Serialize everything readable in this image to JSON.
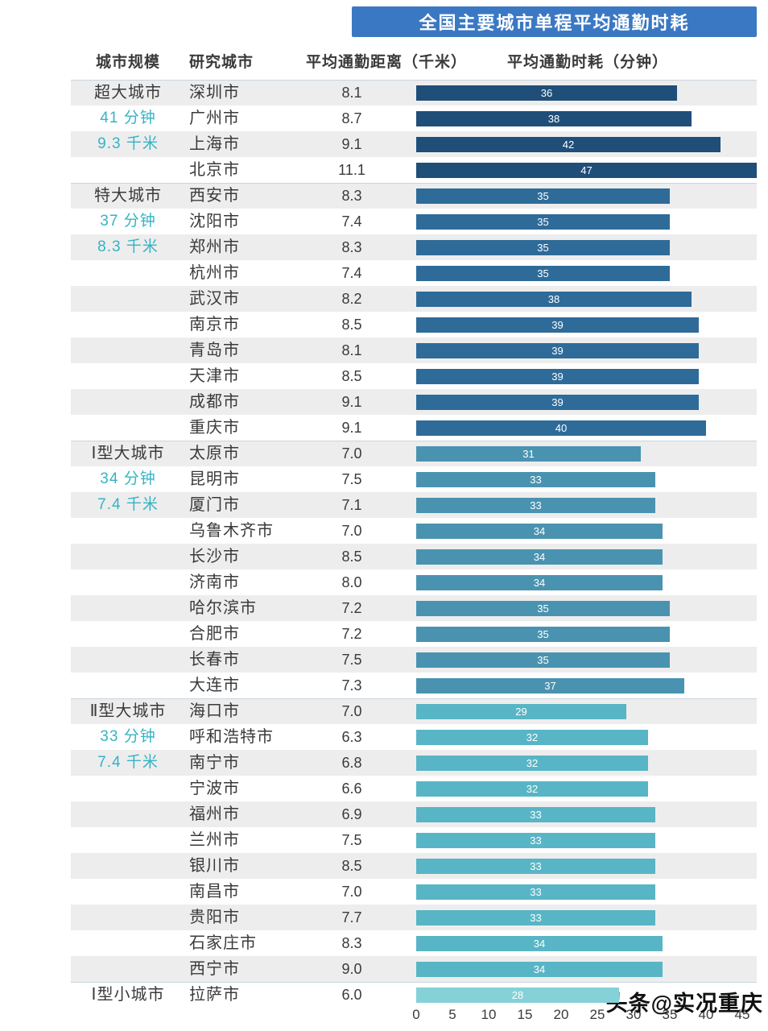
{
  "title": "全国主要城市单程平均通勤时耗",
  "watermark": "头条@实况重庆",
  "columns": {
    "scale": "城市规模",
    "city": "研究城市",
    "distance": "平均通勤距离（千米）",
    "time": "平均通勤时耗（分钟）"
  },
  "colors": {
    "title_bg": "#3b78c3",
    "accent_teal": "#35b3c4",
    "stripe": "#ededed",
    "separator": "#c9d5dd",
    "bar_label": "#ffffff"
  },
  "chart_data": {
    "type": "bar",
    "orientation": "horizontal",
    "title": "全国主要城市单程平均通勤时耗",
    "value_label": "平均通勤时耗（分钟）",
    "distance_label": "平均通勤距离（千米）",
    "xlim": [
      0,
      45
    ],
    "x_ticks": [
      0,
      5,
      10,
      15,
      20,
      25,
      30,
      35,
      40,
      45
    ],
    "grid": false,
    "groups": [
      {
        "name": "超大城市",
        "avg_time": "41 分钟",
        "avg_distance": "9.3 千米",
        "bar_color": "#1f4e79",
        "cities": [
          {
            "city": "深圳市",
            "distance": "8.1",
            "time": 36
          },
          {
            "city": "广州市",
            "distance": "8.7",
            "time": 38
          },
          {
            "city": "上海市",
            "distance": "9.1",
            "time": 42
          },
          {
            "city": "北京市",
            "distance": "11.1",
            "time": 47
          }
        ]
      },
      {
        "name": "特大城市",
        "avg_time": "37 分钟",
        "avg_distance": "8.3 千米",
        "bar_color": "#2e6b99",
        "cities": [
          {
            "city": "西安市",
            "distance": "8.3",
            "time": 35
          },
          {
            "city": "沈阳市",
            "distance": "7.4",
            "time": 35
          },
          {
            "city": "郑州市",
            "distance": "8.3",
            "time": 35
          },
          {
            "city": "杭州市",
            "distance": "7.4",
            "time": 35
          },
          {
            "city": "武汉市",
            "distance": "8.2",
            "time": 38
          },
          {
            "city": "南京市",
            "distance": "8.5",
            "time": 39
          },
          {
            "city": "青岛市",
            "distance": "8.1",
            "time": 39
          },
          {
            "city": "天津市",
            "distance": "8.5",
            "time": 39
          },
          {
            "city": "成都市",
            "distance": "9.1",
            "time": 39
          },
          {
            "city": "重庆市",
            "distance": "9.1",
            "time": 40
          }
        ]
      },
      {
        "name": "Ⅰ型大城市",
        "avg_time": "34 分钟",
        "avg_distance": "7.4 千米",
        "bar_color": "#4a93b0",
        "cities": [
          {
            "city": "太原市",
            "distance": "7.0",
            "time": 31
          },
          {
            "city": "昆明市",
            "distance": "7.5",
            "time": 33
          },
          {
            "city": "厦门市",
            "distance": "7.1",
            "time": 33
          },
          {
            "city": "乌鲁木齐市",
            "distance": "7.0",
            "time": 34
          },
          {
            "city": "长沙市",
            "distance": "8.5",
            "time": 34
          },
          {
            "city": "济南市",
            "distance": "8.0",
            "time": 34
          },
          {
            "city": "哈尔滨市",
            "distance": "7.2",
            "time": 35
          },
          {
            "city": "合肥市",
            "distance": "7.2",
            "time": 35
          },
          {
            "city": "长春市",
            "distance": "7.5",
            "time": 35
          },
          {
            "city": "大连市",
            "distance": "7.3",
            "time": 37
          }
        ]
      },
      {
        "name": "Ⅱ型大城市",
        "avg_time": "33 分钟",
        "avg_distance": "7.4 千米",
        "bar_color": "#58b5c5",
        "cities": [
          {
            "city": "海口市",
            "distance": "7.0",
            "time": 29
          },
          {
            "city": "呼和浩特市",
            "distance": "6.3",
            "time": 32
          },
          {
            "city": "南宁市",
            "distance": "6.8",
            "time": 32
          },
          {
            "city": "宁波市",
            "distance": "6.6",
            "time": 32
          },
          {
            "city": "福州市",
            "distance": "6.9",
            "time": 33
          },
          {
            "city": "兰州市",
            "distance": "7.5",
            "time": 33
          },
          {
            "city": "银川市",
            "distance": "8.5",
            "time": 33
          },
          {
            "city": "南昌市",
            "distance": "7.0",
            "time": 33
          },
          {
            "city": "贵阳市",
            "distance": "7.7",
            "time": 33
          },
          {
            "city": "石家庄市",
            "distance": "8.3",
            "time": 34
          },
          {
            "city": "西宁市",
            "distance": "9.0",
            "time": 34
          }
        ]
      },
      {
        "name": "Ⅰ型小城市",
        "avg_time": "",
        "avg_distance": "",
        "bar_color": "#85d1d8",
        "cities": [
          {
            "city": "拉萨市",
            "distance": "6.0",
            "time": 28
          }
        ]
      }
    ]
  }
}
